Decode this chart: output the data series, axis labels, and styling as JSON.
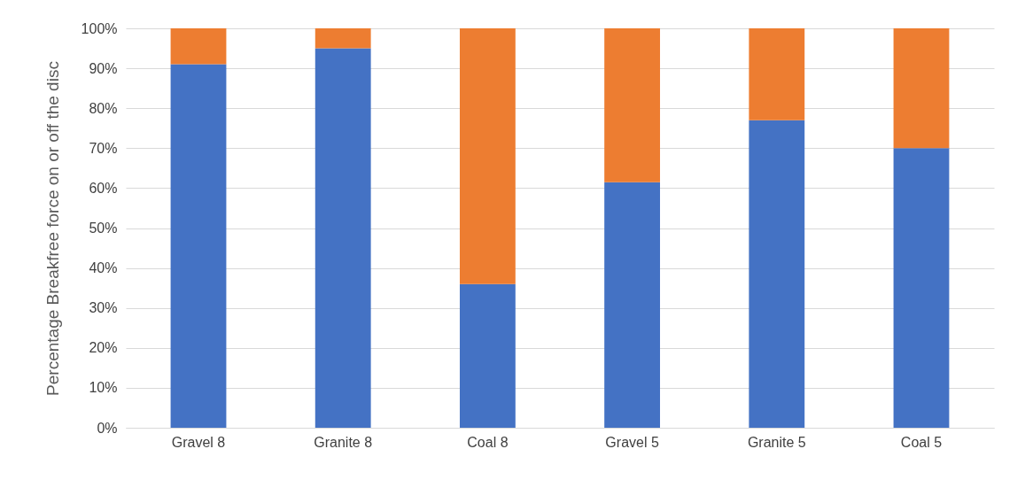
{
  "chart_data": {
    "type": "bar",
    "stacked": true,
    "ylabel": "Percentage Breakfree force on or off the disc",
    "categories": [
      "Gravel 8",
      "Granite 8",
      "Coal  8",
      "Gravel 5",
      "Granite 5",
      "Coal 5"
    ],
    "series": [
      {
        "color": "#4472c4",
        "values": [
          91,
          95,
          36,
          61.5,
          77,
          70
        ]
      },
      {
        "color": "#ed7d31",
        "values": [
          9,
          5,
          64,
          38.5,
          23,
          30
        ]
      }
    ],
    "ylim": [
      0,
      100
    ],
    "yticks": [
      {
        "value": 0,
        "label": "0%"
      },
      {
        "value": 10,
        "label": "10%"
      },
      {
        "value": 20,
        "label": "20%"
      },
      {
        "value": 30,
        "label": "30%"
      },
      {
        "value": 40,
        "label": "40%"
      },
      {
        "value": 50,
        "label": "50%"
      },
      {
        "value": 60,
        "label": "60%"
      },
      {
        "value": 70,
        "label": "70%"
      },
      {
        "value": 80,
        "label": "80%"
      },
      {
        "value": 90,
        "label": "90%"
      },
      {
        "value": 100,
        "label": "100%"
      }
    ],
    "grid": "y",
    "legend": false
  }
}
